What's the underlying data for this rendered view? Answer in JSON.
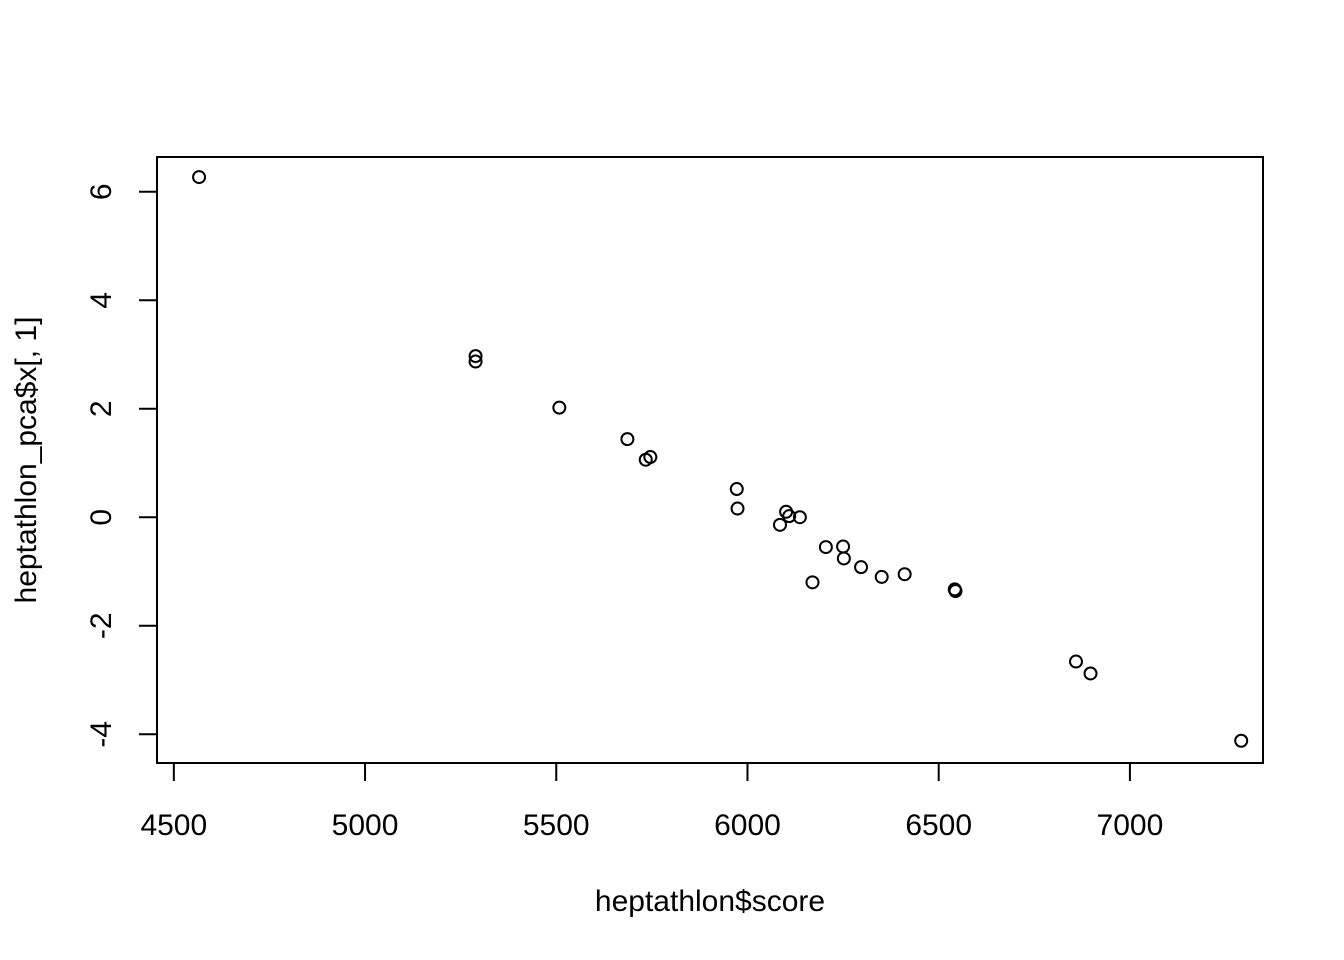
{
  "chart_data": {
    "type": "scatter",
    "title": "",
    "xlabel": "heptathlon$score",
    "ylabel": "heptathlon_pca$x[, 1]",
    "xlim": [
      4456,
      7348
    ],
    "ylim": [
      -4.53,
      6.64
    ],
    "x_ticks": [
      4500,
      5000,
      5500,
      6000,
      6500,
      7000
    ],
    "x_tick_labels": [
      "4500",
      "5000",
      "5500",
      "6000",
      "6500",
      "7000"
    ],
    "y_ticks": [
      -4,
      -2,
      0,
      2,
      4,
      6
    ],
    "y_tick_labels": [
      "-4",
      "-2",
      "0",
      "2",
      "4",
      "6"
    ],
    "grid": false,
    "legend": "none",
    "marker": "open-circle",
    "points": [
      {
        "x": 4566,
        "y": 6.27
      },
      {
        "x": 5289,
        "y": 2.97
      },
      {
        "x": 5289,
        "y": 2.87
      },
      {
        "x": 5508,
        "y": 2.02
      },
      {
        "x": 5686,
        "y": 1.44
      },
      {
        "x": 5734,
        "y": 1.06
      },
      {
        "x": 5746,
        "y": 1.11
      },
      {
        "x": 5972,
        "y": 0.52
      },
      {
        "x": 5974,
        "y": 0.16
      },
      {
        "x": 6101,
        "y": 0.1
      },
      {
        "x": 6109,
        "y": 0.02
      },
      {
        "x": 6137,
        "y": 0.0
      },
      {
        "x": 6085,
        "y": -0.14
      },
      {
        "x": 6205,
        "y": -0.55
      },
      {
        "x": 6250,
        "y": -0.54
      },
      {
        "x": 6252,
        "y": -0.76
      },
      {
        "x": 6297,
        "y": -0.92
      },
      {
        "x": 6351,
        "y": -1.1
      },
      {
        "x": 6411,
        "y": -1.05
      },
      {
        "x": 6170,
        "y": -1.2
      },
      {
        "x": 6542,
        "y": -1.33
      },
      {
        "x": 6544,
        "y": -1.36
      },
      {
        "x": 6859,
        "y": -2.66
      },
      {
        "x": 6897,
        "y": -2.88
      },
      {
        "x": 7291,
        "y": -4.12
      }
    ]
  }
}
